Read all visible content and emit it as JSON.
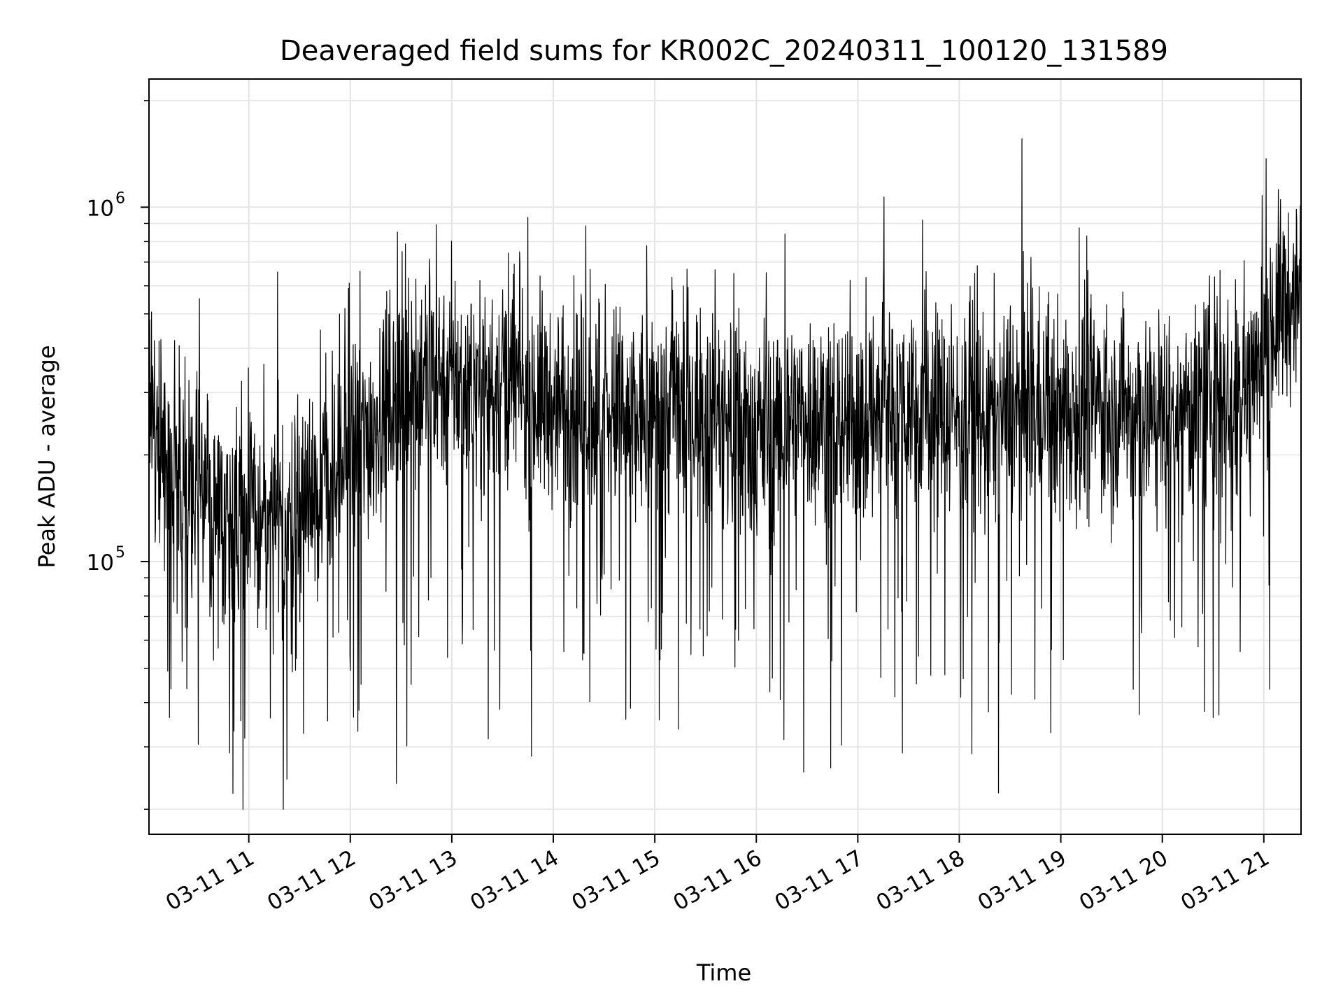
{
  "chart_data": {
    "type": "line",
    "title": "Deaveraged field sums for KR002C_20240311_100120_131589",
    "xlabel": "Time",
    "ylabel": "Peak ADU - average",
    "x_scale": "time",
    "y_scale": "log",
    "xlim": [
      "2024-03-11 10:01",
      "2024-03-11 21:22"
    ],
    "ylim": [
      17000,
      2300000
    ],
    "grid": true,
    "legend": "none",
    "line_color": "#000000",
    "x_ticks": [
      {
        "value": "2024-03-11 11:00",
        "label": "03-11 11"
      },
      {
        "value": "2024-03-11 12:00",
        "label": "03-11 12"
      },
      {
        "value": "2024-03-11 13:00",
        "label": "03-11 13"
      },
      {
        "value": "2024-03-11 14:00",
        "label": "03-11 14"
      },
      {
        "value": "2024-03-11 15:00",
        "label": "03-11 15"
      },
      {
        "value": "2024-03-11 16:00",
        "label": "03-11 16"
      },
      {
        "value": "2024-03-11 17:00",
        "label": "03-11 17"
      },
      {
        "value": "2024-03-11 18:00",
        "label": "03-11 18"
      },
      {
        "value": "2024-03-11 19:00",
        "label": "03-11 19"
      },
      {
        "value": "2024-03-11 20:00",
        "label": "03-11 20"
      },
      {
        "value": "2024-03-11 21:00",
        "label": "03-11 21"
      }
    ],
    "y_ticks": [
      {
        "value": 100000,
        "base": "10",
        "exp": "5"
      },
      {
        "value": 1000000,
        "base": "10",
        "exp": "6"
      }
    ],
    "series": [
      {
        "x": [
          "2024-03-11 10:01",
          "2024-03-11 10:10",
          "2024-03-11 10:20",
          "2024-03-11 10:30",
          "2024-03-11 10:40",
          "2024-03-11 10:50",
          "2024-03-11 11:00",
          "2024-03-11 11:10",
          "2024-03-11 11:20",
          "2024-03-11 11:30",
          "2024-03-11 11:40",
          "2024-03-11 11:50",
          "2024-03-11 12:00",
          "2024-03-11 12:10",
          "2024-03-11 12:20",
          "2024-03-11 12:30",
          "2024-03-11 12:40",
          "2024-03-11 12:50",
          "2024-03-11 13:00",
          "2024-03-11 13:10",
          "2024-03-11 13:20",
          "2024-03-11 13:30",
          "2024-03-11 13:40",
          "2024-03-11 13:50",
          "2024-03-11 14:00",
          "2024-03-11 14:10",
          "2024-03-11 14:20",
          "2024-03-11 14:30",
          "2024-03-11 14:40",
          "2024-03-11 14:50",
          "2024-03-11 15:00",
          "2024-03-11 15:10",
          "2024-03-11 15:20",
          "2024-03-11 15:30",
          "2024-03-11 15:40",
          "2024-03-11 15:50",
          "2024-03-11 16:00",
          "2024-03-11 16:10",
          "2024-03-11 16:20",
          "2024-03-11 16:30",
          "2024-03-11 16:40",
          "2024-03-11 16:50",
          "2024-03-11 17:00",
          "2024-03-11 17:10",
          "2024-03-11 17:20",
          "2024-03-11 17:30",
          "2024-03-11 17:40",
          "2024-03-11 17:50",
          "2024-03-11 18:00",
          "2024-03-11 18:10",
          "2024-03-11 18:20",
          "2024-03-11 18:30",
          "2024-03-11 18:40",
          "2024-03-11 18:50",
          "2024-03-11 19:00",
          "2024-03-11 19:10",
          "2024-03-11 19:20",
          "2024-03-11 19:30",
          "2024-03-11 19:40",
          "2024-03-11 19:50",
          "2024-03-11 20:00",
          "2024-03-11 20:10",
          "2024-03-11 20:20",
          "2024-03-11 20:30",
          "2024-03-11 20:40",
          "2024-03-11 20:50",
          "2024-03-11 21:00",
          "2024-03-11 21:10",
          "2024-03-11 21:22"
        ],
        "y": [
          250000,
          230000,
          170000,
          150000,
          140000,
          130000,
          140000,
          125000,
          120000,
          140000,
          160000,
          170000,
          200000,
          230000,
          260000,
          300000,
          330000,
          340000,
          330000,
          320000,
          310000,
          300000,
          300000,
          290000,
          280000,
          280000,
          270000,
          270000,
          260000,
          250000,
          260000,
          270000,
          280000,
          260000,
          250000,
          240000,
          230000,
          240000,
          250000,
          260000,
          250000,
          240000,
          250000,
          260000,
          280000,
          290000,
          280000,
          270000,
          260000,
          250000,
          260000,
          270000,
          280000,
          270000,
          260000,
          270000,
          280000,
          270000,
          260000,
          250000,
          260000,
          270000,
          280000,
          290000,
          300000,
          310000,
          420000,
          520000,
          580000
        ]
      }
    ]
  }
}
